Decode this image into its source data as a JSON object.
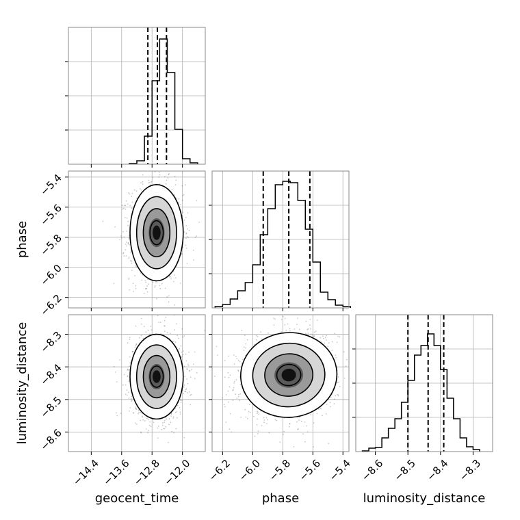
{
  "chart_data": {
    "type": "corner",
    "parameters": [
      "geocent_time",
      "phase",
      "luminosity_distance"
    ],
    "axis_labels": {
      "x": [
        "geocent_time",
        "phase",
        "luminosity_distance"
      ],
      "y": [
        "",
        "phase",
        "luminosity_distance"
      ]
    },
    "ranges": [
      [
        -15.0,
        -11.4
      ],
      [
        -6.27,
        -5.36
      ],
      [
        -8.66,
        -8.24
      ]
    ],
    "ticks": [
      {
        "values": [
          -14.4,
          -13.6,
          -12.8,
          -12.0
        ],
        "labels": [
          "−14.4",
          "−13.6",
          "−12.8",
          "−12.0"
        ]
      },
      {
        "values": [
          -6.2,
          -6.0,
          -5.8,
          -5.6,
          -5.4
        ],
        "labels": [
          "−6.2",
          "−6.0",
          "−5.8",
          "−5.6",
          "−5.4"
        ]
      },
      {
        "values": [
          -8.6,
          -8.5,
          -8.4,
          -8.3
        ],
        "labels": [
          "−8.6",
          "−8.5",
          "−8.4",
          "−8.3"
        ]
      }
    ],
    "grid": true,
    "histograms": [
      {
        "parameter": "geocent_time",
        "bin_edges": [
          -13.4,
          -13.2,
          -13.0,
          -12.8,
          -12.6,
          -12.4,
          -12.2,
          -12.0,
          -11.8,
          -11.6
        ],
        "counts": [
          1,
          5,
          41,
          122,
          183,
          134,
          51,
          8,
          2
        ],
        "quantiles": [
          -12.91,
          -12.66,
          -12.42
        ],
        "ymax": 200
      },
      {
        "parameter": "phase",
        "bin_edges": [
          -6.25,
          -6.2,
          -6.15,
          -6.1,
          -6.05,
          -6.0,
          -5.95,
          -5.9,
          -5.85,
          -5.8,
          -5.75,
          -5.7,
          -5.65,
          -5.6,
          -5.55,
          -5.5,
          -5.45,
          -5.4,
          -5.35
        ],
        "counts": [
          2,
          5,
          13,
          25,
          37,
          63,
          107,
          145,
          180,
          185,
          183,
          157,
          115,
          67,
          23,
          12,
          4,
          2
        ],
        "quantiles": [
          -5.93,
          -5.76,
          -5.62
        ],
        "ymax": 200
      },
      {
        "parameter": "luminosity_distance",
        "bin_edges": [
          -8.64,
          -8.62,
          -8.6,
          -8.58,
          -8.56,
          -8.54,
          -8.52,
          -8.5,
          -8.48,
          -8.46,
          -8.44,
          -8.42,
          -8.4,
          -8.38,
          -8.36,
          -8.34,
          -8.32,
          -8.3,
          -8.28
        ],
        "counts": [
          1,
          5,
          6,
          20,
          34,
          48,
          72,
          104,
          141,
          155,
          172,
          155,
          120,
          78,
          48,
          20,
          7,
          3
        ],
        "quantiles": [
          -8.5,
          -8.438,
          -8.39
        ],
        "ymax": 200
      }
    ],
    "pairs": [
      {
        "x": "geocent_time",
        "y": "phase",
        "mean": [
          -12.68,
          -5.77
        ],
        "std": [
          0.35,
          0.16
        ],
        "rho": 0.0
      },
      {
        "x": "geocent_time",
        "y": "luminosity_distance",
        "mean": [
          -12.68,
          -8.43
        ],
        "std": [
          0.35,
          0.065
        ],
        "rho": 0.0
      },
      {
        "x": "phase",
        "y": "luminosity_distance",
        "mean": [
          -5.76,
          -8.425
        ],
        "std": [
          0.16,
          0.065
        ],
        "rho": 0.1
      }
    ],
    "contour_levels_sigma": [
      0.5,
      1.0,
      1.5,
      2.0
    ],
    "colors": {
      "line": "#000000",
      "grid": "#b0b0b0",
      "frame": "#888888"
    }
  }
}
